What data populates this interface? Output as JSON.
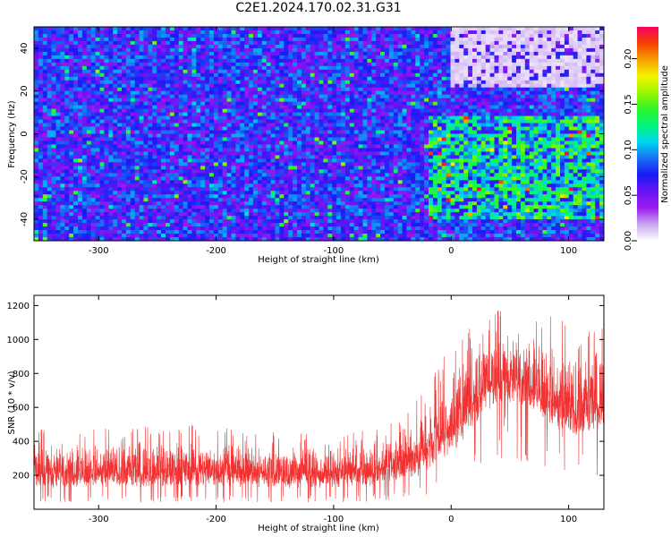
{
  "title": "C2E1.2024.170.02.31.G31",
  "charts": [
    {
      "type": "heatmap",
      "xlabel": "Height of straight line (km)",
      "ylabel": "Frequency (Hz)",
      "xlim": [
        -355,
        130
      ],
      "ylim": [
        -50,
        50
      ],
      "x_ticks": [
        -300,
        -200,
        -100,
        0,
        100
      ],
      "y_ticks": [
        -40,
        -20,
        0,
        20,
        40
      ],
      "colorbar": {
        "label": "Normalized spectral amplitude",
        "range": [
          0,
          0.235
        ],
        "ticks": [
          0.0,
          0.05,
          0.1,
          0.15,
          0.2
        ],
        "tick_labels": [
          "0.00",
          "0.05",
          "0.10",
          "0.15",
          "0.20"
        ],
        "colors": [
          "#ffffff",
          "#c7a6f0",
          "#9b1cf0",
          "#6b14f5",
          "#1a1af5",
          "#1a6ef5",
          "#00d5f0",
          "#00f57a",
          "#2df52d",
          "#9bf500",
          "#f5f500",
          "#f5a000",
          "#f54000",
          "#f50064"
        ]
      },
      "regions": [
        {
          "name": "background",
          "x": [
            -355,
            -30
          ],
          "y": [
            -50,
            50
          ],
          "level": 0.07
        },
        {
          "name": "bright band",
          "x": [
            -20,
            130
          ],
          "y": [
            -40,
            8
          ],
          "level": 0.11
        },
        {
          "name": "low-amplitude patch",
          "x": [
            0,
            130
          ],
          "y": [
            22,
            50
          ],
          "level": 0.01
        }
      ]
    },
    {
      "type": "line",
      "xlabel": "Height of straight line (km)",
      "ylabel": "SNR (10 * v/v)",
      "xlim": [
        -355,
        130
      ],
      "ylim": [
        0,
        1260
      ],
      "x_ticks": [
        -300,
        -200,
        -100,
        0,
        100
      ],
      "y_ticks": [
        200,
        400,
        600,
        800,
        1000,
        1200
      ],
      "color": "#f03232",
      "envelope": {
        "x": [
          -355,
          -300,
          -250,
          -200,
          -150,
          -100,
          -60,
          -30,
          -10,
          10,
          30,
          50,
          70,
          85,
          100,
          115,
          130
        ],
        "low": [
          80,
          80,
          80,
          80,
          80,
          80,
          90,
          120,
          180,
          300,
          500,
          560,
          500,
          380,
          300,
          350,
          420
        ],
        "high": [
          370,
          380,
          380,
          400,
          360,
          340,
          380,
          500,
          720,
          900,
          1000,
          1020,
          1000,
          960,
          900,
          880,
          900
        ]
      }
    }
  ]
}
